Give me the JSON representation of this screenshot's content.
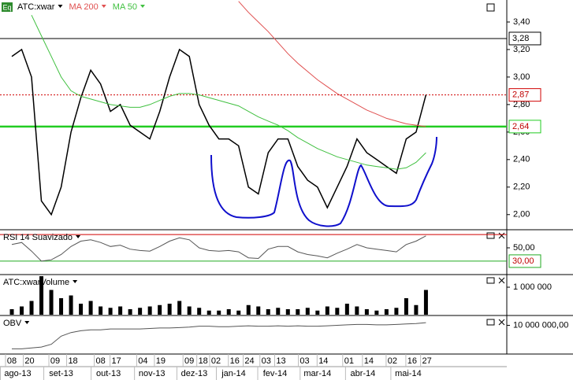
{
  "chart_data": [
    {
      "type": "line",
      "title_badge": "Eq",
      "xlim": [
        -1.2,
        50.2
      ],
      "ylim": [
        1.89,
        3.56
      ],
      "yticks": [
        {
          "value": 2.0,
          "label": "2,00"
        },
        {
          "value": 2.2,
          "label": "2,20"
        },
        {
          "value": 2.4,
          "label": "2,40"
        },
        {
          "value": 2.6,
          "label": "2,60"
        },
        {
          "value": 2.8,
          "label": "2,80"
        },
        {
          "value": 3.0,
          "label": "3,00"
        },
        {
          "value": 3.2,
          "label": "3,20"
        },
        {
          "value": 3.4,
          "label": "3,40"
        }
      ],
      "levels": [
        {
          "value": 3.28,
          "label": "3,28",
          "color": "#000000",
          "style": "solid"
        },
        {
          "value": 2.87,
          "label": "2,87",
          "color": "#d00000",
          "style": "dotted"
        },
        {
          "value": 2.64,
          "label": "2,64",
          "color": "#22cc22",
          "style": "thick"
        }
      ],
      "series": [
        {
          "name": "ATC:xwar",
          "color": "#000000",
          "values": [
            3.15,
            3.2,
            3.0,
            2.1,
            2.0,
            2.2,
            2.6,
            2.85,
            3.05,
            2.95,
            2.75,
            2.8,
            2.65,
            2.6,
            2.55,
            2.75,
            3.0,
            3.2,
            3.15,
            2.8,
            2.65,
            2.55,
            2.55,
            2.5,
            2.2,
            2.15,
            2.45,
            2.55,
            2.55,
            2.35,
            2.25,
            2.2,
            2.05,
            2.2,
            2.35,
            2.55,
            2.45,
            2.4,
            2.35,
            2.3,
            2.55,
            2.6,
            2.87
          ]
        },
        {
          "name": "MA 200",
          "color": "#e05050",
          "values": [
            null,
            null,
            null,
            null,
            null,
            null,
            null,
            null,
            null,
            null,
            null,
            null,
            null,
            null,
            null,
            null,
            null,
            null,
            null,
            null,
            null,
            null,
            null,
            3.55,
            3.47,
            3.4,
            3.33,
            3.25,
            3.17,
            3.1,
            3.04,
            2.98,
            2.93,
            2.88,
            2.84,
            2.8,
            2.76,
            2.73,
            2.7,
            2.68,
            2.66,
            2.65,
            2.64
          ]
        },
        {
          "name": "MA 50",
          "color": "#40c040",
          "values": [
            null,
            null,
            3.45,
            3.3,
            3.15,
            3.0,
            2.9,
            2.86,
            2.84,
            2.82,
            2.8,
            2.79,
            2.78,
            2.78,
            2.8,
            2.83,
            2.86,
            2.88,
            2.88,
            2.87,
            2.85,
            2.83,
            2.81,
            2.79,
            2.75,
            2.71,
            2.68,
            2.65,
            2.61,
            2.56,
            2.52,
            2.48,
            2.45,
            2.42,
            2.4,
            2.38,
            2.36,
            2.35,
            2.34,
            2.33,
            2.34,
            2.38,
            2.45
          ]
        }
      ]
    },
    {
      "type": "line",
      "ylim": [
        11,
        76
      ],
      "yticks": [
        {
          "value": 50,
          "label": "50,00"
        }
      ],
      "levels": [
        {
          "value": 70,
          "color": "#d00000",
          "style": "solid"
        },
        {
          "value": 30,
          "label": "30,00",
          "color": "#22aa22",
          "style": "solid"
        }
      ],
      "series": [
        {
          "name": "RSI 14 Suavizado",
          "color": "#555555",
          "values": [
            55,
            58,
            45,
            30,
            32,
            40,
            52,
            60,
            62,
            58,
            52,
            54,
            48,
            46,
            45,
            52,
            60,
            65,
            62,
            50,
            46,
            45,
            46,
            44,
            35,
            34,
            48,
            52,
            52,
            44,
            40,
            38,
            35,
            42,
            48,
            55,
            50,
            48,
            46,
            44,
            55,
            60,
            68
          ]
        }
      ]
    },
    {
      "type": "bar",
      "ylim": [
        0,
        1430000
      ],
      "yticks": [
        {
          "value": 1000000,
          "label": "1 000 000"
        }
      ],
      "series": [
        {
          "name": "ATC:xwarVolume",
          "color": "#000000",
          "values": [
            200000,
            300000,
            500000,
            1400000,
            900000,
            600000,
            700000,
            400000,
            500000,
            300000,
            250000,
            300000,
            200000,
            250000,
            300000,
            350000,
            400000,
            500000,
            300000,
            250000,
            150000,
            150000,
            200000,
            150000,
            350000,
            300000,
            200000,
            250000,
            200000,
            200000,
            250000,
            150000,
            300000,
            250000,
            400000,
            300000,
            200000,
            150000,
            200000,
            250000,
            600000,
            350000,
            900000
          ]
        }
      ]
    },
    {
      "type": "line",
      "ylim": [
        7000000,
        11000000
      ],
      "yticks": [
        {
          "value": 10000000,
          "label": "10 000 000,00"
        }
      ],
      "series": [
        {
          "name": "OBV",
          "color": "#555555",
          "values": [
            7400000,
            7400000,
            7500000,
            7600000,
            7900000,
            8800000,
            9200000,
            9400000,
            9500000,
            9500000,
            9600000,
            9600000,
            9600000,
            9600000,
            9650000,
            9700000,
            9700000,
            9750000,
            9800000,
            9900000,
            9900000,
            9850000,
            9850000,
            9900000,
            9950000,
            9900000,
            9900000,
            9950000,
            9900000,
            9950000,
            9900000,
            9900000,
            9950000,
            10000000,
            10050000,
            10100000,
            10100000,
            10050000,
            10050000,
            10100000,
            10150000,
            10200000,
            10300000
          ]
        }
      ],
      "xticks": [
        {
          "value": 0,
          "label": "08"
        },
        {
          "value": 1.8,
          "label": "20"
        },
        {
          "value": 4.4,
          "label": "09"
        },
        {
          "value": 6.2,
          "label": "18"
        },
        {
          "value": 9,
          "label": "08"
        },
        {
          "value": 10.6,
          "label": "17"
        },
        {
          "value": 13.3,
          "label": "04"
        },
        {
          "value": 15.1,
          "label": "19"
        },
        {
          "value": 18,
          "label": "09"
        },
        {
          "value": 19.4,
          "label": "18"
        },
        {
          "value": 20.7,
          "label": "02"
        },
        {
          "value": 22.6,
          "label": "16"
        },
        {
          "value": 24.1,
          "label": "24"
        },
        {
          "value": 25.8,
          "label": "03"
        },
        {
          "value": 27.3,
          "label": "13"
        },
        {
          "value": 29.7,
          "label": "03"
        },
        {
          "value": 31.6,
          "label": "14"
        },
        {
          "value": 34.2,
          "label": "01"
        },
        {
          "value": 36.2,
          "label": "14"
        },
        {
          "value": 38.6,
          "label": "02"
        },
        {
          "value": 40.6,
          "label": "16"
        },
        {
          "value": 42.1,
          "label": "27"
        }
      ],
      "month_ticks": [
        {
          "value": 0.6,
          "label": "ago-13"
        },
        {
          "value": 5,
          "label": "set-13"
        },
        {
          "value": 9.8,
          "label": "out-13"
        },
        {
          "value": 14.2,
          "label": "nov-13"
        },
        {
          "value": 18.5,
          "label": "dez-13"
        },
        {
          "value": 22.5,
          "label": "jan-14"
        },
        {
          "value": 26.7,
          "label": "fev-14"
        },
        {
          "value": 31,
          "label": "mar-14"
        },
        {
          "value": 35.6,
          "label": "abr-14"
        },
        {
          "value": 40.2,
          "label": "mai-14"
        }
      ]
    }
  ]
}
